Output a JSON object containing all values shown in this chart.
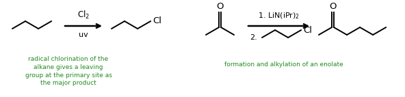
{
  "background_color": "#ffffff",
  "text_color": "#000000",
  "green_color": "#228B22",
  "fig_width": 5.92,
  "fig_height": 1.42,
  "dpi": 100,
  "reaction1": {
    "arrow_label_top": "Cl$_2$",
    "arrow_label_bottom": "uv",
    "caption": "radical chlorination of the\nalkane gives a leaving\ngroup at the primary site as\nthe major product"
  },
  "reaction2": {
    "arrow_label_top": "1. LiN(iPr)$_2$",
    "arrow_label_bottom": "2.",
    "caption": "formation and alkylation of an enolate"
  }
}
